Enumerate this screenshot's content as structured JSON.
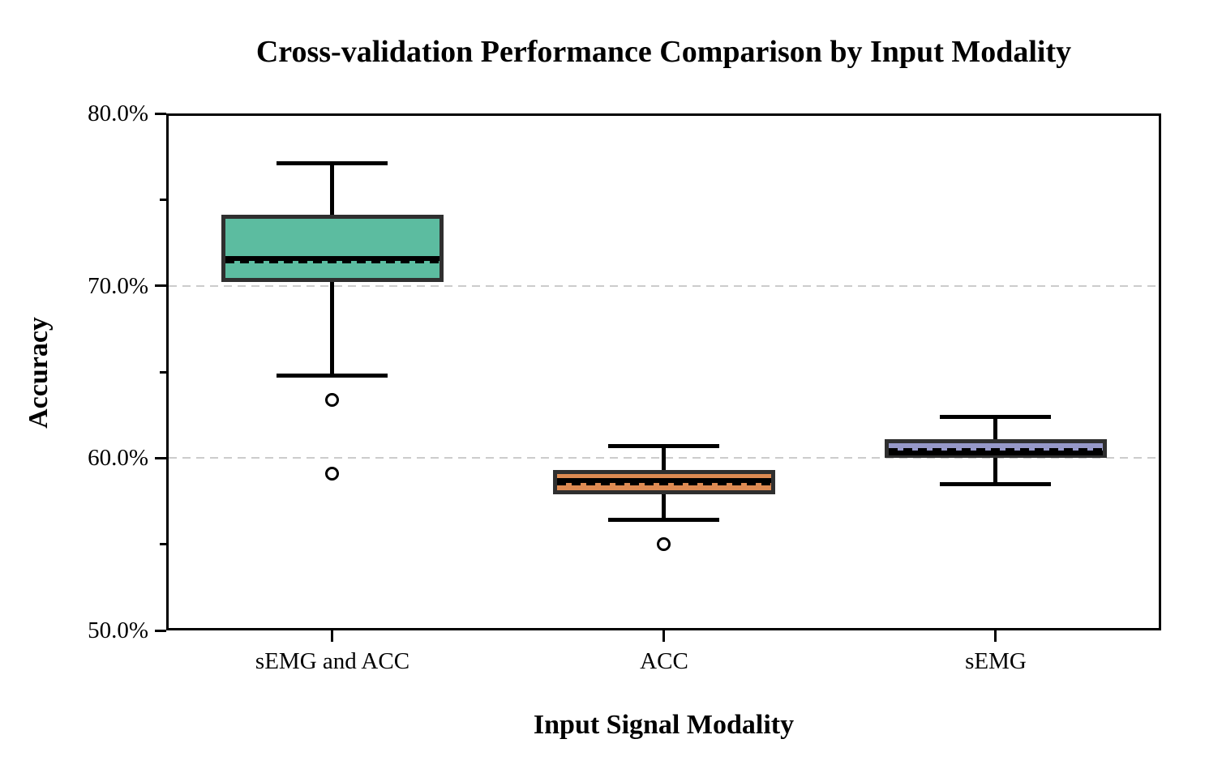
{
  "page": {
    "background_color": "#ffffff"
  },
  "chart_data": {
    "type": "box",
    "title": "Cross-validation Performance Comparison by Input Modality",
    "xlabel": "Input Signal Modality",
    "ylabel": "Accuracy",
    "x_axis": {
      "label": "Input Signal Modality",
      "categories": [
        "sEMG and ACC",
        "ACC",
        "sEMG"
      ]
    },
    "y_axis": {
      "label": "Accuracy",
      "min": 50,
      "max": 80,
      "unit": "%",
      "tick_values": [
        50,
        60,
        70,
        80
      ],
      "tick_labels": [
        "50.0%",
        "60.0%",
        "70.0%",
        "80.0%"
      ],
      "minor_tick_values": [
        55,
        65,
        75
      ],
      "gridline_values": [
        60,
        70
      ],
      "gridline_style": "dashed"
    },
    "legend": "none",
    "colors": {
      "box_edge": "#2f2f2f",
      "whisker": "#000000",
      "median": "#000000",
      "mean": "#000000",
      "gridline": "#cccccc",
      "frame": "#000000"
    },
    "boxes": [
      {
        "category": "sEMG and ACC",
        "fill_color": "#5cbca0",
        "whisker_high": 77.1,
        "q3": 74.1,
        "median": 71.6,
        "mean": 71.4,
        "q1": 70.2,
        "whisker_low": 64.8,
        "outliers": [
          63.4,
          59.1
        ]
      },
      {
        "category": "ACC",
        "fill_color": "#dd8a52",
        "whisker_high": 60.7,
        "q3": 59.3,
        "median": 58.7,
        "mean": 58.5,
        "q1": 57.9,
        "whisker_low": 56.4,
        "outliers": [
          55.0
        ]
      },
      {
        "category": "sEMG",
        "fill_color": "#9698c8",
        "whisker_high": 62.4,
        "q3": 61.1,
        "median": 60.3,
        "mean": 60.5,
        "q1": 60.0,
        "whisker_low": 58.5,
        "outliers": []
      }
    ]
  }
}
